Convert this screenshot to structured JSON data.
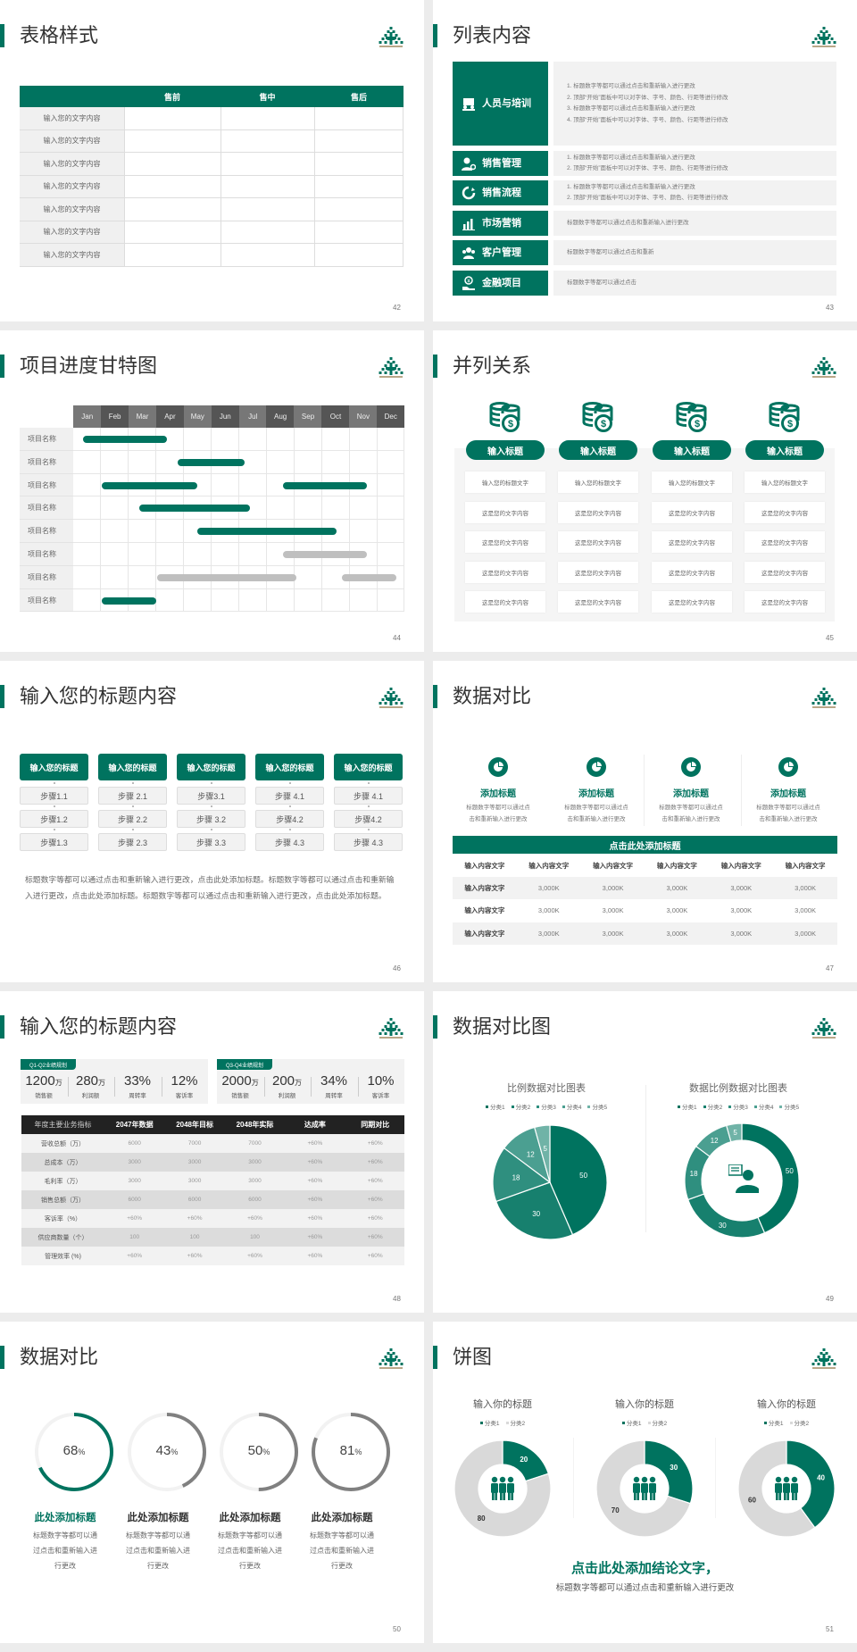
{
  "colors": {
    "accent": "#00735f",
    "dark": "#222222",
    "gray_bar": "#bfbfbf",
    "panel": "#f2f2f2"
  },
  "s42": {
    "page": "42",
    "title": "表格样式",
    "headers": [
      "",
      "售前",
      "售中",
      "售后"
    ],
    "rows": [
      "输入您的文字内容",
      "输入您的文字内容",
      "输入您的文字内容",
      "输入您的文字内容",
      "输入您的文字内容",
      "输入您的文字内容",
      "输入您的文字内容"
    ]
  },
  "s43": {
    "page": "43",
    "title": "列表内容",
    "items": [
      {
        "label": "人员与培训",
        "icon": "people-training-icon",
        "lines": [
          "1.  标题数字等都可以通过点击和重新输入进行更改",
          "2.  顶部“开始”面板中可以对字体、字号、颜色、行距等进行修改",
          "3.  标题数字等都可以通过点击和重新输入进行更改",
          "4.  顶部“开始”面板中可以对字体、字号、颜色、行距等进行修改"
        ]
      },
      {
        "label": "销售管理",
        "icon": "user-gear-icon",
        "lines": [
          "1.  标题数字等都可以通过点击和重新输入进行更改",
          "2.  顶部“开始”面板中可以对字体、字号、颜色、行距等进行修改"
        ]
      },
      {
        "label": "销售流程",
        "icon": "cycle-icon",
        "lines": [
          "1.  标题数字等都可以通过点击和重新输入进行更改",
          "2.  顶部“开始”面板中可以对字体、字号、颜色、行距等进行修改"
        ]
      },
      {
        "label": "市场营销",
        "icon": "bar-chart-icon",
        "lines": [
          "标题数字等都可以通过点击和重新输入进行更改"
        ]
      },
      {
        "label": "客户管理",
        "icon": "customers-icon",
        "lines": [
          "标题数字等都可以通过点击和重新"
        ]
      },
      {
        "label": "金融项目",
        "icon": "money-hand-icon",
        "lines": [
          "标题数字等都可以通过点击"
        ]
      }
    ]
  },
  "s44": {
    "page": "44",
    "title": "项目进度甘特图",
    "months": [
      "Jan",
      "Feb",
      "Mar",
      "Apr",
      "May",
      "Jun",
      "Jul",
      "Aug",
      "Sep",
      "Oct",
      "Nov",
      "Dec"
    ],
    "tasks": [
      {
        "name": "项目名称",
        "bars": [
          {
            "start": 0.35,
            "end": 3.4,
            "status": "active"
          }
        ]
      },
      {
        "name": "项目名称",
        "bars": [
          {
            "start": 3.8,
            "end": 6.2,
            "status": "active"
          }
        ]
      },
      {
        "name": "项目名称",
        "bars": [
          {
            "start": 1.05,
            "end": 4.5,
            "status": "active"
          },
          {
            "start": 7.6,
            "end": 10.65,
            "status": "active"
          }
        ]
      },
      {
        "name": "项目名称",
        "bars": [
          {
            "start": 2.4,
            "end": 6.4,
            "status": "active"
          }
        ]
      },
      {
        "name": "项目名称",
        "bars": [
          {
            "start": 4.5,
            "end": 9.55,
            "status": "active"
          }
        ]
      },
      {
        "name": "项目名称",
        "bars": [
          {
            "start": 7.6,
            "end": 10.65,
            "status": "planned"
          }
        ]
      },
      {
        "name": "项目名称",
        "bars": [
          {
            "start": 3.05,
            "end": 8.1,
            "status": "planned"
          },
          {
            "start": 9.75,
            "end": 11.7,
            "status": "planned"
          }
        ]
      },
      {
        "name": "项目名称",
        "bars": [
          {
            "start": 1.05,
            "end": 3.0,
            "status": "active"
          }
        ]
      }
    ]
  },
  "s45": {
    "page": "45",
    "title": "并列关系",
    "columns": [
      {
        "heading": "输入标题",
        "cells": [
          "输入您的标题文字",
          "这是您的文字内容",
          "这是您的文字内容",
          "这是您的文字内容",
          "这是您的文字内容"
        ]
      },
      {
        "heading": "输入标题",
        "cells": [
          "输入您的标题文字",
          "这是您的文字内容",
          "这是您的文字内容",
          "这是您的文字内容",
          "这是您的文字内容"
        ]
      },
      {
        "heading": "输入标题",
        "cells": [
          "输入您的标题文字",
          "这是您的文字内容",
          "这是您的文字内容",
          "这是您的文字内容",
          "这是您的文字内容"
        ]
      },
      {
        "heading": "输入标题",
        "cells": [
          "输入您的标题文字",
          "这是您的文字内容",
          "这是您的文字内容",
          "这是您的文字内容",
          "这是您的文字内容"
        ]
      }
    ]
  },
  "s46": {
    "page": "46",
    "title": "输入您的标题内容",
    "columns": [
      {
        "heading": "输入您的标题",
        "steps": [
          "步骤1.1",
          "步骤1.2",
          "步骤1.3"
        ]
      },
      {
        "heading": "输入您的标题",
        "steps": [
          "步骤 2.1",
          "步骤 2.2",
          "步骤 2.3"
        ]
      },
      {
        "heading": "输入您的标题",
        "steps": [
          "步骤3.1",
          "步骤 3.2",
          "步骤 3.3"
        ]
      },
      {
        "heading": "输入您的标题",
        "steps": [
          "步骤 4.1",
          "步骤4.2",
          "步骤 4.3"
        ]
      },
      {
        "heading": "输入您的标题",
        "steps": [
          "步骤 4.1",
          "步骤4.2",
          "步骤 4.3"
        ]
      }
    ],
    "paragraph": "标题数字等都可以通过点击和重新输入进行更改，点击此处添加标题。标题数字等都可以通过点击和重新输入进行更改，点击此处添加标题。标题数字等都可以通过点击和重新输入进行更改，点击此处添加标题。"
  },
  "s47": {
    "page": "47",
    "title": "数据对比",
    "features": [
      {
        "heading": "添加标题",
        "lines": [
          "标题数字等都可以通过点",
          "击和重新输入进行更改"
        ]
      },
      {
        "heading": "添加标题",
        "lines": [
          "标题数字等都可以通过点",
          "击和重新输入进行更改"
        ]
      },
      {
        "heading": "添加标题",
        "lines": [
          "标题数字等都可以通过点",
          "击和重新输入进行更改"
        ]
      },
      {
        "heading": "添加标题",
        "lines": [
          "标题数字等都可以通过点",
          "击和重新输入进行更改"
        ]
      }
    ],
    "table_title": "点击此处添加标题",
    "headers": [
      "输入内容文字",
      "输入内容文字",
      "输入内容文字",
      "输入内容文字",
      "输入内容文字",
      "输入内容文字"
    ],
    "rows": [
      [
        "输入内容文字",
        "3,000K",
        "3,000K",
        "3,000K",
        "3,000K",
        "3,000K"
      ],
      [
        "输入内容文字",
        "3,000K",
        "3,000K",
        "3,000K",
        "3,000K",
        "3,000K"
      ],
      [
        "输入内容文字",
        "3,000K",
        "3,000K",
        "3,000K",
        "3,000K",
        "3,000K"
      ]
    ]
  },
  "s48": {
    "page": "48",
    "title": "输入您的标题内容",
    "panels": [
      {
        "tag": "Q1-Q2业绩规划",
        "kpis": [
          {
            "value": "1200",
            "unit": "万",
            "label": "销售额"
          },
          {
            "value": "280",
            "unit": "万",
            "label": "利润额"
          },
          {
            "value": "33%",
            "unit": "",
            "label": "周转率"
          },
          {
            "value": "12%",
            "unit": "",
            "label": "客诉率"
          }
        ]
      },
      {
        "tag": "Q3-Q4业绩规划",
        "kpis": [
          {
            "value": "2000",
            "unit": "万",
            "label": "销售额"
          },
          {
            "value": "200",
            "unit": "万",
            "label": "利润额"
          },
          {
            "value": "34%",
            "unit": "",
            "label": "周转率"
          },
          {
            "value": "10%",
            "unit": "",
            "label": "客诉率"
          }
        ]
      }
    ],
    "headers": [
      "年度主要业务指标",
      "2047年数据",
      "2048年目标",
      "2048年实际",
      "达成率",
      "同期对比"
    ],
    "rows": [
      [
        "营收总额（万）",
        "6000",
        "7000",
        "7000",
        "+60%",
        "+60%"
      ],
      [
        "总成本（万）",
        "3000",
        "3000",
        "3000",
        "+60%",
        "+60%"
      ],
      [
        "毛利率（万）",
        "3000",
        "3000",
        "3000",
        "+60%",
        "+60%"
      ],
      [
        "销售总额（万）",
        "6000",
        "6000",
        "6000",
        "+60%",
        "+60%"
      ],
      [
        "客诉率（%）",
        "+60%",
        "+60%",
        "+60%",
        "+60%",
        "+60%"
      ],
      [
        "供应商数量（个）",
        "100",
        "100",
        "100",
        "+60%",
        "+60%"
      ],
      [
        "管理效率 (%)",
        "+60%",
        "+60%",
        "+60%",
        "+60%",
        "+60%"
      ]
    ]
  },
  "s49": {
    "page": "49",
    "title": "数据对比图"
  },
  "s50": {
    "page": "50",
    "title": "数据对比",
    "items": [
      {
        "value": 68,
        "label": "68",
        "unit": "%",
        "heading": "此处添加标题",
        "lines": [
          "标题数字等都可以通",
          "过点击和重新输入进",
          "行更改"
        ],
        "highlight": true
      },
      {
        "value": 43,
        "label": "43",
        "unit": "%",
        "heading": "此处添加标题",
        "lines": [
          "标题数字等都可以通",
          "过点击和重新输入进",
          "行更改"
        ],
        "highlight": false
      },
      {
        "value": 50,
        "label": "50",
        "unit": "%",
        "heading": "此处添加标题",
        "lines": [
          "标题数字等都可以通",
          "过点击和重新输入进",
          "行更改"
        ],
        "highlight": false
      },
      {
        "value": 81,
        "label": "81",
        "unit": "%",
        "heading": "此处添加标题",
        "lines": [
          "标题数字等都可以通",
          "过点击和重新输入进",
          "行更改"
        ],
        "highlight": false
      }
    ]
  },
  "s51": {
    "page": "51",
    "title": "饼图",
    "conclusion": "点击此处添加结论文字，",
    "sub": "标题数字等都可以通过点击和重新输入进行更改"
  },
  "chart_data": [
    {
      "type": "pie",
      "title": "比例数据对比图表",
      "categories": [
        "分类1",
        "分类2",
        "分类3",
        "分类4",
        "分类5"
      ],
      "values": [
        50,
        30,
        18,
        12,
        5
      ],
      "colors": [
        "#00735f",
        "#17806e",
        "#2f8f7f",
        "#4b9f91",
        "#70b3a7"
      ],
      "legend": "top"
    },
    {
      "type": "pie",
      "variant": "donut",
      "title": "数据比例数据对比图表",
      "categories": [
        "分类1",
        "分类2",
        "分类3",
        "分类4",
        "分类5"
      ],
      "values": [
        50,
        30,
        18,
        12,
        5
      ],
      "colors": [
        "#00735f",
        "#17806e",
        "#2f8f7f",
        "#4b9f91",
        "#70b3a7"
      ],
      "legend": "top",
      "center_icon": "customer-service-icon"
    },
    {
      "type": "pie",
      "variant": "donut",
      "title": "输入你的标题",
      "categories": [
        "分类1",
        "分类2"
      ],
      "values": [
        20,
        80
      ],
      "colors": [
        "#00735f",
        "#d9d9d9"
      ],
      "legend": "top",
      "center_icon": "team-icon"
    },
    {
      "type": "pie",
      "variant": "donut",
      "title": "输入你的标题",
      "categories": [
        "分类1",
        "分类2"
      ],
      "values": [
        30,
        70
      ],
      "colors": [
        "#00735f",
        "#d9d9d9"
      ],
      "legend": "top",
      "center_icon": "team-icon"
    },
    {
      "type": "pie",
      "variant": "donut",
      "title": "输入你的标题",
      "categories": [
        "分类1",
        "分类2"
      ],
      "values": [
        40,
        60
      ],
      "colors": [
        "#00735f",
        "#d9d9d9"
      ],
      "legend": "top",
      "center_icon": "team-icon"
    }
  ]
}
